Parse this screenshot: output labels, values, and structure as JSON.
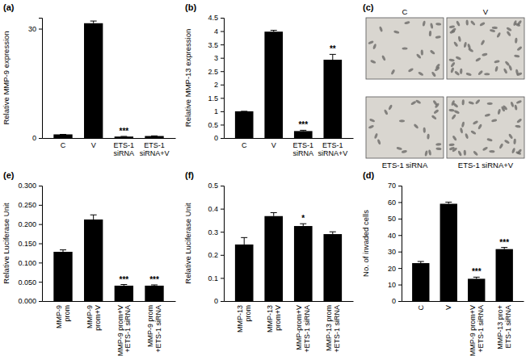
{
  "chart_data": [
    {
      "type": "bar",
      "title": "(a)",
      "y_label": "Relative MMP-9 expression",
      "categories": [
        "C",
        "V",
        "ETS-1\nsiRNA",
        "ETS-1\nsiRNA+V"
      ],
      "values": [
        1,
        31.5,
        0.4,
        0.55
      ],
      "errors": [
        0,
        0.6,
        0.05,
        0.05
      ],
      "significance": [
        null,
        null,
        "***",
        null
      ],
      "color": "#000000",
      "ylim": [
        0,
        33
      ],
      "yticks": [
        0,
        30
      ]
    },
    {
      "type": "bar",
      "title": "(b)",
      "y_label": "Relative MMP-13 expression",
      "categories": [
        "C",
        "V",
        "ETS-1\nsiRNA",
        "ETS-1\nsiRNA+V"
      ],
      "values": [
        1,
        3.98,
        0.26,
        2.93
      ],
      "errors": [
        0,
        0.05,
        0.03,
        0.2
      ],
      "significance": [
        null,
        null,
        "***",
        "**"
      ],
      "color": "#000000",
      "ylim": [
        0,
        4.5
      ],
      "yticks": [
        0,
        0.5,
        1,
        1.5,
        2,
        2.5,
        3,
        3.5,
        4,
        4.5
      ]
    },
    {
      "type": "image",
      "title": "(c)",
      "labels": [
        "C",
        "V",
        "ETS-1 siRNA",
        "ETS-1 siRNA+V"
      ]
    },
    {
      "type": "bar",
      "title": "(e)",
      "y_label": "Relative Luciferase Unit",
      "categories": [
        "MMP-9\nprom",
        "MMP-9\nprom+V",
        "MMP-9 prom+V\n+ETS-1 siRNA",
        "MMP-9 prom\n+ETS-1 siRNA"
      ],
      "values": [
        0.128,
        0.212,
        0.04,
        0.04
      ],
      "errors": [
        0.005,
        0.012,
        0.003,
        0.002
      ],
      "significance": [
        null,
        null,
        "***",
        "***"
      ],
      "color": "#000000",
      "ylim": [
        0,
        0.3
      ],
      "yticks": [
        {
          "value": 0,
          "label": "0.000"
        },
        {
          "value": 0.05,
          "label": "0.050"
        },
        {
          "value": 0.1,
          "label": "0.100"
        },
        {
          "value": 0.15,
          "label": "0.150"
        },
        {
          "value": 0.2,
          "label": "0.200"
        },
        {
          "value": 0.25,
          "label": "0.250"
        },
        {
          "value": 0.3,
          "label": "0.300"
        }
      ]
    },
    {
      "type": "bar",
      "title": "(f)",
      "y_label": "Relative Luciferase Unit",
      "categories": [
        "MMP-13\nprom",
        "MMP-13\nprom+V",
        "MMP-prom+V\n+ETS-1 siRNA",
        "MMP-13 prom\n+ETS-1 siRNA"
      ],
      "values": [
        0.245,
        0.368,
        0.325,
        0.29
      ],
      "errors": [
        0.03,
        0.015,
        0.01,
        0.01
      ],
      "significance": [
        null,
        null,
        "*",
        null
      ],
      "color": "#000000",
      "ylim": [
        0,
        0.5
      ],
      "yticks": [
        0,
        0.1,
        0.2,
        0.3,
        0.4,
        0.5
      ]
    },
    {
      "type": "bar",
      "title": "(d)",
      "y_label": "No. of invaded cells",
      "categories": [
        "C",
        "V",
        "MMP-9 prom+V\n+ETS-1 siRNA",
        "MMP-13 pro+\nETS-1 siRNA"
      ],
      "values": [
        23,
        59,
        13.5,
        31.5
      ],
      "errors": [
        1,
        1,
        1,
        1
      ],
      "significance": [
        null,
        null,
        "***",
        "***"
      ],
      "color": "#000000",
      "ylim": [
        0,
        70
      ],
      "yticks": [
        0,
        10,
        20,
        30,
        40,
        50,
        60,
        70
      ]
    }
  ]
}
